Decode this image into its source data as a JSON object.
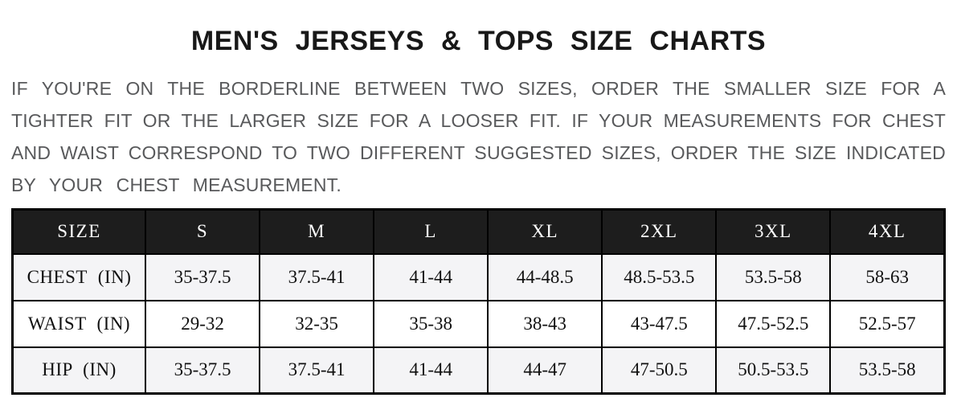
{
  "title": "MEN'S JERSEYS & TOPS SIZE CHARTS",
  "title_color": "#181818",
  "intro": {
    "color": "#58595b",
    "lines": [
      "IF YOU'RE ON THE BORDERLINE BETWEEN TWO SIZES, ORDER THE SMALLER SIZE FOR A",
      "TIGHTER FIT OR THE LARGER SIZE FOR A LOOSER FIT. IF YOUR MEASUREMENTS FOR CHEST",
      "AND WAIST CORRESPOND TO TWO DIFFERENT SUGGESTED SIZES, ORDER THE SIZE INDICATED",
      "BY YOUR CHEST MEASUREMENT."
    ]
  },
  "size_table": {
    "header": [
      "SIZE",
      "S",
      "M",
      "L",
      "XL",
      "2XL",
      "3XL",
      "4XL"
    ],
    "rows": [
      {
        "label": "CHEST (IN)",
        "values": [
          "35-37.5",
          "37.5-41",
          "41-44",
          "44-48.5",
          "48.5-53.5",
          "53.5-58",
          "58-63"
        ]
      },
      {
        "label": "WAIST (IN)",
        "values": [
          "29-32",
          "32-35",
          "35-38",
          "38-43",
          "43-47.5",
          "47.5-52.5",
          "52.5-57"
        ]
      },
      {
        "label": "HIP (IN)",
        "values": [
          "35-37.5",
          "37.5-41",
          "41-44",
          "44-47",
          "47-50.5",
          "50.5-53.5",
          "53.5-58"
        ]
      }
    ],
    "colors": {
      "header_bg": "#1d1d1d",
      "header_text": "#ffffff",
      "row_alt_bg": "#f4f4f6",
      "row_bg": "#ffffff",
      "border": "#000000"
    }
  }
}
